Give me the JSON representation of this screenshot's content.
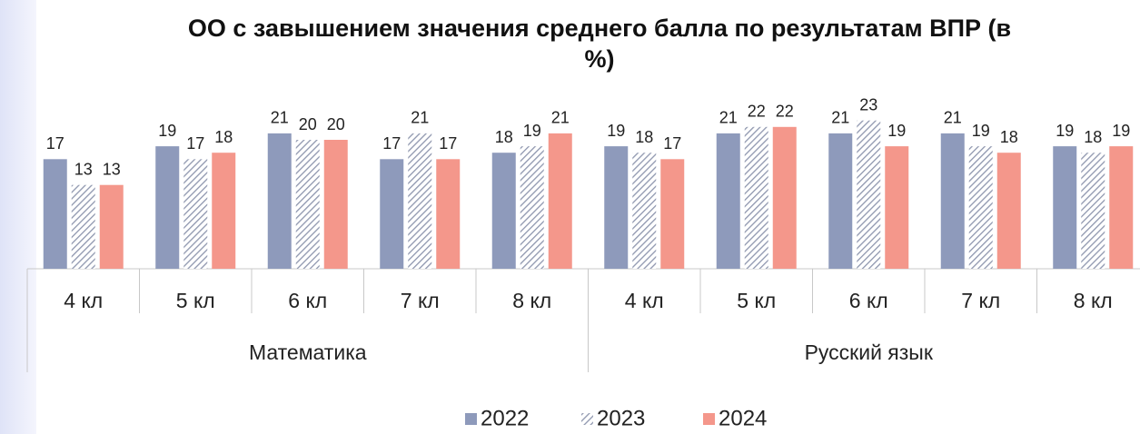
{
  "chart_data": {
    "type": "bar",
    "title": "ОО с завышением значения среднего балла по результатам ВПР (в %)",
    "category_groups": [
      {
        "label": "Математика",
        "categories": [
          "4 кл",
          "5 кл",
          "6 кл",
          "7 кл",
          "8 кл"
        ]
      },
      {
        "label": "Русский язык",
        "categories": [
          "4 кл",
          "5 кл",
          "6 кл",
          "7 кл",
          "8 кл"
        ]
      }
    ],
    "series": [
      {
        "name": "2022",
        "color": "#8e9abb",
        "hatch": false,
        "values": [
          17,
          19,
          21,
          17,
          18,
          19,
          21,
          21,
          21,
          19
        ]
      },
      {
        "name": "2023",
        "color": "#9aa2ba",
        "hatch": true,
        "values": [
          13,
          17,
          20,
          21,
          19,
          18,
          22,
          23,
          19,
          18
        ]
      },
      {
        "name": "2024",
        "color": "#f4978b",
        "hatch": false,
        "values": [
          13,
          18,
          20,
          17,
          21,
          17,
          22,
          19,
          18,
          19
        ]
      }
    ],
    "legend": "bottom"
  }
}
